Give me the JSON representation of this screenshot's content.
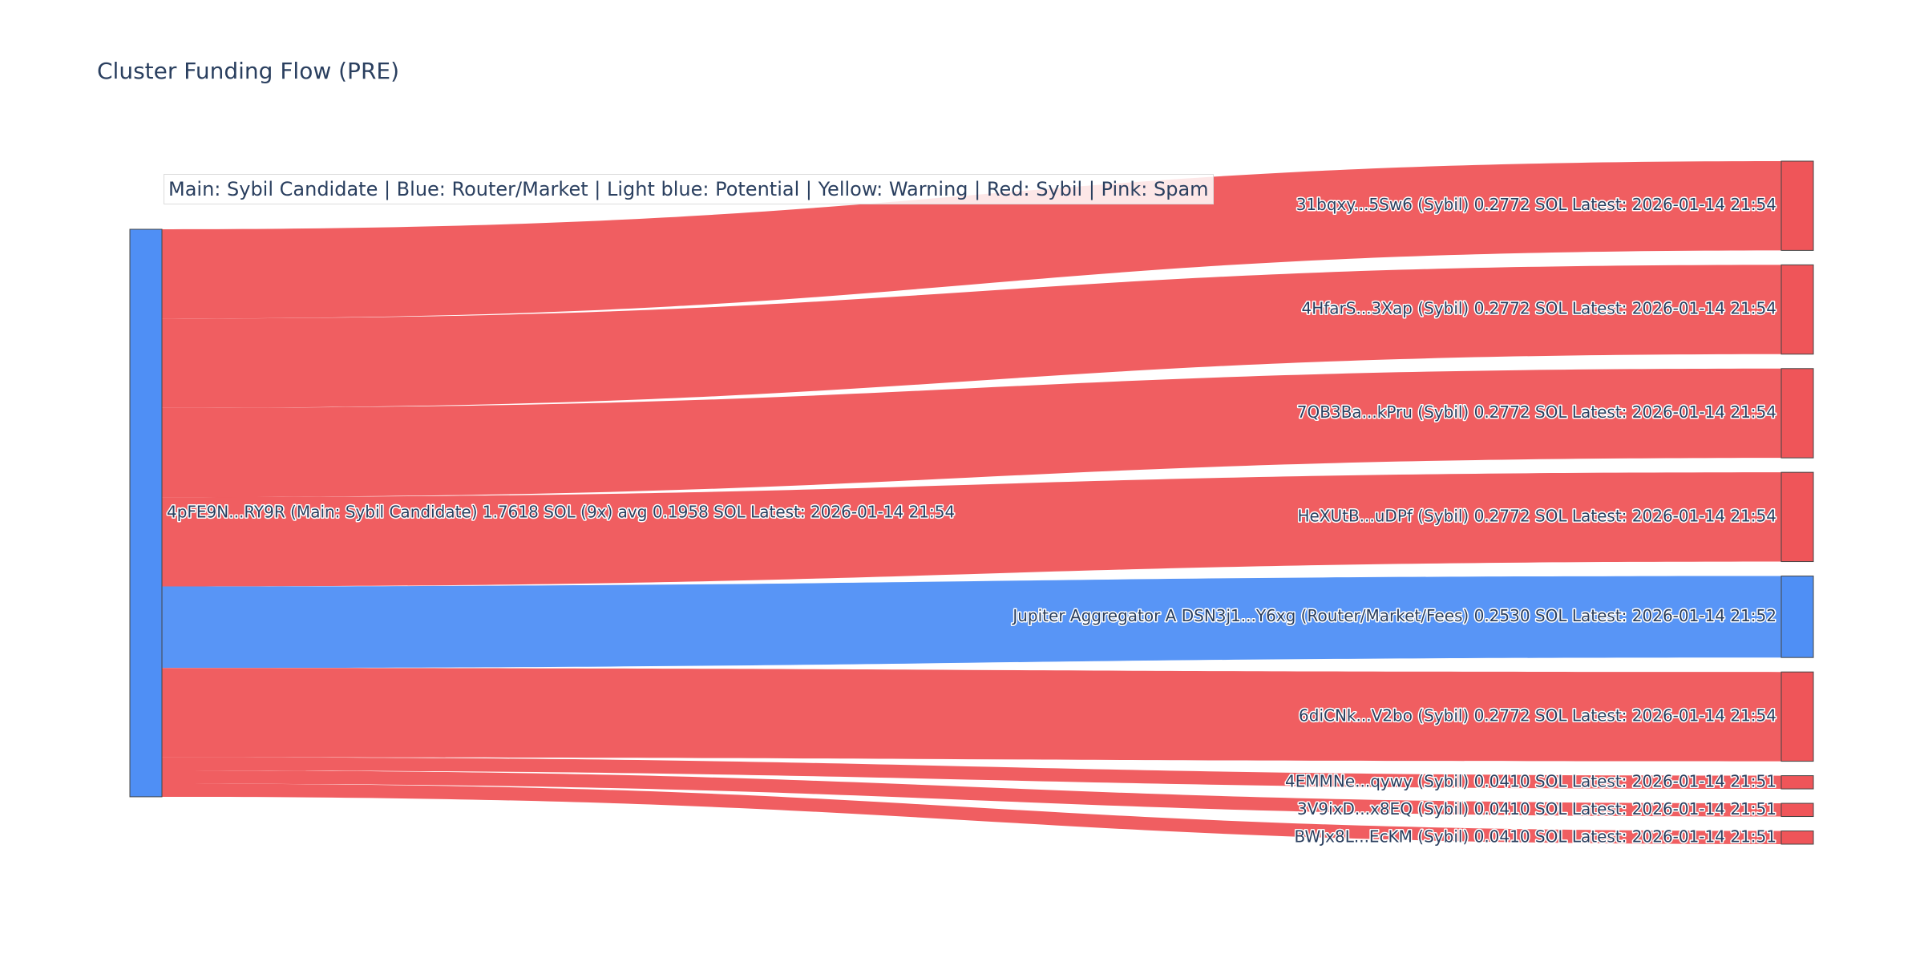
{
  "chart_data": {
    "type": "sankey",
    "title": "Cluster Funding Flow (PRE)",
    "annotation": "Main: Sybil Candidate  |  Blue: Router/Market | Light blue: Potential | Yellow: Warning | Red: Sybil | Pink: Spam",
    "colors": {
      "sybil": "#ef5559",
      "router": "#4f8ff5",
      "node_border": "#444444"
    },
    "source": {
      "label": "4pFE9N...RY9R (Main: Sybil Candidate) 1.7618 SOL (9x) avg 0.1958 SOL Latest: 2026-01-14 21:54",
      "value": 1.7618,
      "color": "#4f8ff5"
    },
    "targets": [
      {
        "label": "31bqxy...5Sw6 (Sybil) 0.2772 SOL Latest: 2026-01-14 21:54",
        "value": 0.2772,
        "category": "Sybil",
        "color": "#ef5559"
      },
      {
        "label": "4HfarS...3Xap (Sybil) 0.2772 SOL Latest: 2026-01-14 21:54",
        "value": 0.2772,
        "category": "Sybil",
        "color": "#ef5559"
      },
      {
        "label": "7QB3Ba...kPru (Sybil) 0.2772 SOL Latest: 2026-01-14 21:54",
        "value": 0.2772,
        "category": "Sybil",
        "color": "#ef5559"
      },
      {
        "label": "HeXUtB...uDPf (Sybil) 0.2772 SOL Latest: 2026-01-14 21:54",
        "value": 0.2772,
        "category": "Sybil",
        "color": "#ef5559"
      },
      {
        "label": "Jupiter Aggregator A DSN3j1...Y6xg (Router/Market/Fees) 0.2530 SOL Latest: 2026-01-14 21:52",
        "value": 0.253,
        "category": "Router/Market/Fees",
        "color": "#4f8ff5"
      },
      {
        "label": "6diCNk...V2bo (Sybil) 0.2772 SOL Latest: 2026-01-14 21:54",
        "value": 0.2772,
        "category": "Sybil",
        "color": "#ef5559"
      },
      {
        "label": "4EMMNe...qywy (Sybil) 0.0410 SOL Latest: 2026-01-14 21:51",
        "value": 0.041,
        "category": "Sybil",
        "color": "#ef5559"
      },
      {
        "label": "3V9ixD...x8EQ (Sybil) 0.0410 SOL Latest: 2026-01-14 21:51",
        "value": 0.041,
        "category": "Sybil",
        "color": "#ef5559"
      },
      {
        "label": "BWJx8L...EcKM (Sybil) 0.0410 SOL Latest: 2026-01-14 21:51",
        "value": 0.041,
        "category": "Sybil",
        "color": "#ef5559"
      }
    ]
  }
}
